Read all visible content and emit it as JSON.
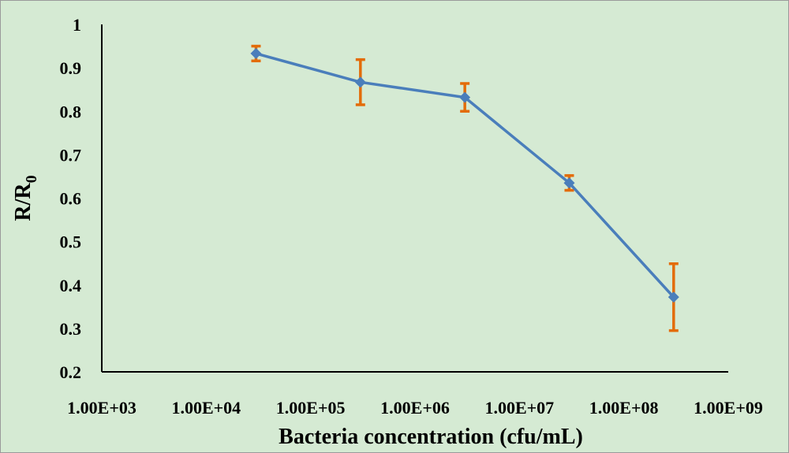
{
  "chart_data": {
    "type": "line",
    "xlabel": "Bacteria concentration (cfu/mL)",
    "ylabel": {
      "main": "R/R",
      "subscript": "0"
    },
    "x_scale": "log",
    "xlim": [
      1000,
      1000000000
    ],
    "ylim": [
      0.2,
      1.0
    ],
    "x_ticks": [
      1000,
      10000,
      100000,
      1000000,
      10000000,
      100000000,
      1000000000
    ],
    "x_tick_labels": [
      "1.00E+03",
      "1.00E+04",
      "1.00E+05",
      "1.00E+06",
      "1.00E+07",
      "1.00E+08",
      "1.00E+09"
    ],
    "y_ticks": [
      0.2,
      0.3,
      0.4,
      0.5,
      0.6,
      0.7,
      0.8,
      0.9,
      1.0
    ],
    "y_tick_labels": [
      "0.2",
      "0.3",
      "0.4",
      "0.5",
      "0.6",
      "0.7",
      "0.8",
      "0.9",
      "1"
    ],
    "grid": false,
    "legend": "none",
    "series": [
      {
        "x": [
          30000,
          300000,
          3000000,
          30000000,
          300000000
        ],
        "y": [
          0.933,
          0.867,
          0.832,
          0.635,
          0.372
        ],
        "error": [
          0.017,
          0.052,
          0.032,
          0.017,
          0.077
        ],
        "line_color": "#4a7ebb",
        "marker_color": "#4a7ebb",
        "error_color": "#e36c09",
        "marker": "diamond"
      }
    ]
  },
  "colors": {
    "background": "#d5ead3",
    "axis": "#000000"
  }
}
